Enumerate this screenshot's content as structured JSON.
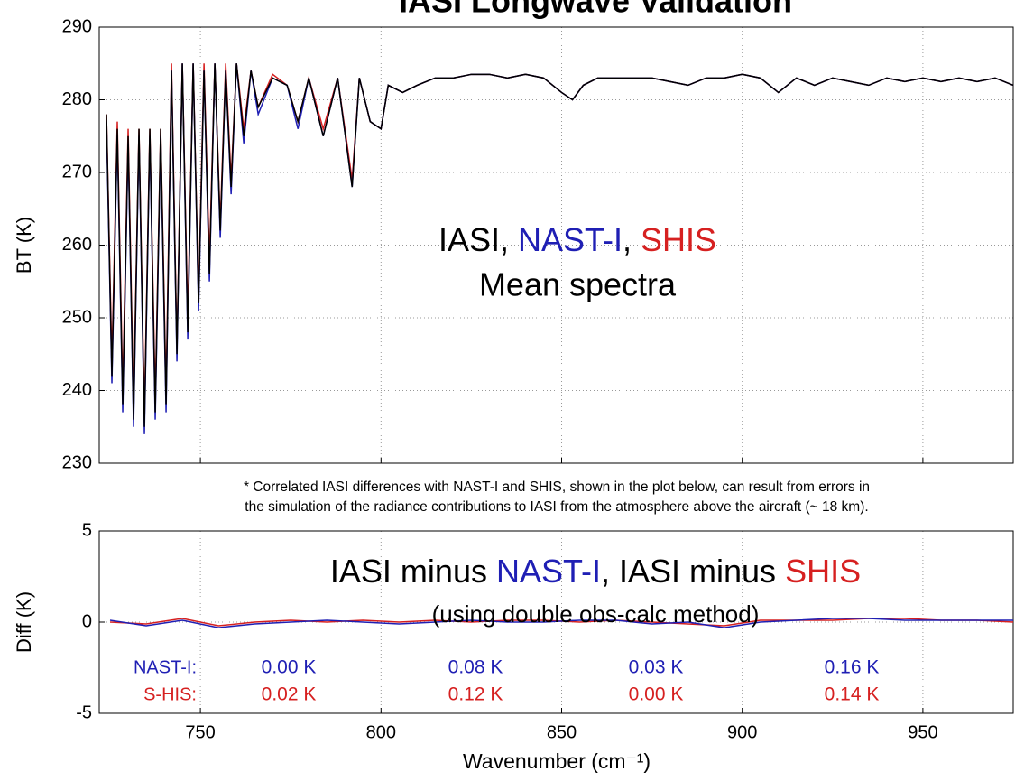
{
  "chart_data": [
    {
      "type": "line",
      "title": "IASI Longwave Validation",
      "ylabel": "BT (K)",
      "xlim": [
        722,
        975
      ],
      "ylim": [
        230,
        290
      ],
      "xticks": [
        750,
        800,
        850,
        900,
        950
      ],
      "yticks": [
        230,
        240,
        250,
        260,
        270,
        280,
        290
      ],
      "grid": true,
      "annotation": [
        {
          "text": "IASI, ",
          "color": "#000000"
        },
        {
          "text": "NAST-I",
          "color": "#1f1fb4"
        },
        {
          "text": ", ",
          "color": "#000000"
        },
        {
          "text": "SHIS",
          "color": "#d62020"
        }
      ],
      "subannotation": "Mean spectra",
      "x": [
        724,
        725.5,
        727,
        728.5,
        730,
        731.5,
        733,
        734.5,
        736,
        737.5,
        739,
        740.5,
        742,
        743.5,
        745,
        746.5,
        748,
        749.5,
        751,
        752.5,
        754,
        755.5,
        757,
        758.5,
        760,
        762,
        764,
        766,
        770,
        774,
        777,
        780,
        784,
        788,
        792,
        794,
        797,
        800,
        802,
        806,
        810,
        815,
        820,
        825,
        830,
        835,
        840,
        845,
        850,
        853,
        856,
        860,
        865,
        870,
        875,
        880,
        885,
        890,
        895,
        900,
        905,
        910,
        915,
        920,
        925,
        930,
        935,
        940,
        945,
        950,
        955,
        960,
        965,
        970,
        975
      ],
      "series": [
        {
          "name": "IASI",
          "color": "#000000",
          "values": [
            278,
            242,
            276,
            238,
            275,
            236,
            276,
            235,
            276,
            237,
            276,
            238,
            284,
            245,
            285,
            248,
            285,
            252,
            284,
            256,
            285,
            262,
            284,
            268,
            285,
            275,
            284,
            279,
            283,
            282,
            277,
            283,
            275,
            283,
            268,
            283,
            277,
            276,
            282,
            281,
            282,
            283,
            283,
            283.5,
            283.5,
            283,
            283.5,
            283,
            281,
            280,
            282,
            283,
            283,
            283,
            283,
            282.5,
            282,
            283,
            283,
            283.5,
            283,
            281,
            283,
            282,
            283,
            282.5,
            282,
            283,
            282.5,
            283,
            282.5,
            283,
            282.5,
            283,
            282
          ]
        },
        {
          "name": "NAST-I",
          "color": "#1f1fb4",
          "values": [
            277,
            241,
            275,
            237,
            274,
            235,
            275,
            234,
            275,
            236,
            275,
            237,
            284,
            244,
            285,
            247,
            285,
            251,
            284,
            255,
            285,
            261,
            284,
            267,
            285,
            274,
            284,
            278,
            283,
            282,
            276,
            283,
            275,
            283,
            268,
            283,
            277,
            276,
            282,
            281,
            282,
            283,
            283,
            283.5,
            283.5,
            283,
            283.5,
            283,
            281,
            280,
            282,
            283,
            283,
            283,
            283,
            282.5,
            282,
            283,
            283,
            283.5,
            283,
            281,
            283,
            282,
            283,
            282.5,
            282,
            283,
            282.5,
            283,
            282.5,
            283,
            282.5,
            283,
            282
          ]
        },
        {
          "name": "SHIS",
          "color": "#d62020",
          "values": [
            278,
            244,
            277,
            240,
            276,
            238,
            276,
            237,
            276,
            239,
            276,
            240,
            285,
            246,
            285,
            250,
            285,
            253,
            285,
            258,
            285,
            263,
            285,
            269,
            285,
            276,
            284,
            279,
            283.5,
            282,
            277,
            283,
            276,
            283,
            269,
            283,
            277,
            276,
            282,
            281,
            282,
            283,
            283,
            283.5,
            283.5,
            283,
            283.5,
            283,
            281,
            280,
            282,
            283,
            283,
            283,
            283,
            282.5,
            282,
            283,
            283,
            283.5,
            283,
            281,
            283,
            282,
            283,
            282.5,
            282,
            283,
            282.5,
            283,
            282.5,
            283,
            282.5,
            283,
            282
          ]
        }
      ]
    },
    {
      "type": "line",
      "ylabel": "Diff (K)",
      "xlabel": "Wavenumber (cm⁻¹)",
      "note": [
        "* Correlated IASI differences with NAST-I and SHIS, shown in the plot below, can result from errors in",
        "the simulation of the radiance contributions to IASI from the atmosphere above the aircraft (~ 18 km)."
      ],
      "xlim": [
        722,
        975
      ],
      "ylim": [
        -5,
        5
      ],
      "xticks": [
        750,
        800,
        850,
        900,
        950
      ],
      "yticks": [
        -5,
        0,
        5
      ],
      "grid": true,
      "annotation": [
        {
          "text": "IASI minus ",
          "color": "#000000"
        },
        {
          "text": "NAST-I",
          "color": "#1f1fb4"
        },
        {
          "text": ", IASI minus ",
          "color": "#000000"
        },
        {
          "text": "SHIS",
          "color": "#d62020"
        }
      ],
      "subannotation": "(using double obs-calc method)",
      "x": [
        725,
        735,
        745,
        755,
        765,
        775,
        785,
        795,
        805,
        815,
        825,
        835,
        845,
        855,
        865,
        875,
        885,
        895,
        905,
        915,
        925,
        935,
        945,
        955,
        965,
        975
      ],
      "series": [
        {
          "name": "NAST-I",
          "color": "#1f1fb4",
          "values": [
            0.1,
            -0.2,
            0.1,
            -0.3,
            -0.1,
            0,
            0.1,
            0,
            -0.1,
            0,
            0.1,
            0,
            0,
            0.1,
            0.1,
            -0.1,
            0,
            -0.3,
            0,
            0.1,
            0.2,
            0.2,
            0.1,
            0.1,
            0.1,
            0.1
          ]
        },
        {
          "name": "SHIS",
          "color": "#d62020",
          "values": [
            0,
            -0.1,
            0.2,
            -0.2,
            0,
            0.1,
            0,
            0.1,
            0,
            0.1,
            0,
            0.1,
            0.1,
            0,
            0.1,
            0,
            -0.1,
            -0.2,
            0.1,
            0.1,
            0.1,
            0.2,
            0.2,
            0.1,
            0.1,
            0
          ]
        }
      ],
      "stats": [
        {
          "name": "NAST-I:",
          "color": "#1f1fb4",
          "values": [
            0.0,
            0.08,
            0.03,
            0.16
          ],
          "value_labels": [
            "0.00 K",
            "0.08 K",
            "0.03 K",
            "0.16 K"
          ]
        },
        {
          "name": "S-HIS:",
          "color": "#d62020",
          "values": [
            0.02,
            0.12,
            0.0,
            0.14
          ],
          "value_labels": [
            "0.02 K",
            "0.12 K",
            "0.00 K",
            "0.14 K"
          ]
        }
      ]
    }
  ]
}
